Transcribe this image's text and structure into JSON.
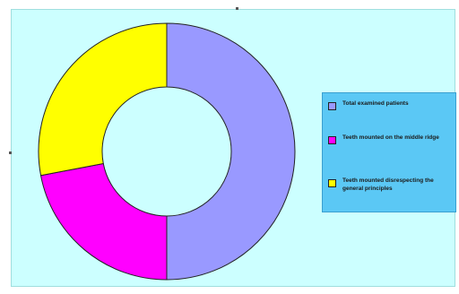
{
  "chart_data": {
    "type": "donut",
    "title": "",
    "series": [
      {
        "name": "Total examined patients",
        "value": 50,
        "color": "#9999ff"
      },
      {
        "name": "Teeth mounted on the middle ridge",
        "value": 22,
        "color": "#ff00ff"
      },
      {
        "name": "Teeth mounted disrespecting the general principles",
        "value": 28,
        "color": "#ffff00"
      }
    ],
    "legend_position": "right",
    "background": "#ccffff",
    "legend_background": "#5bc8f5"
  }
}
